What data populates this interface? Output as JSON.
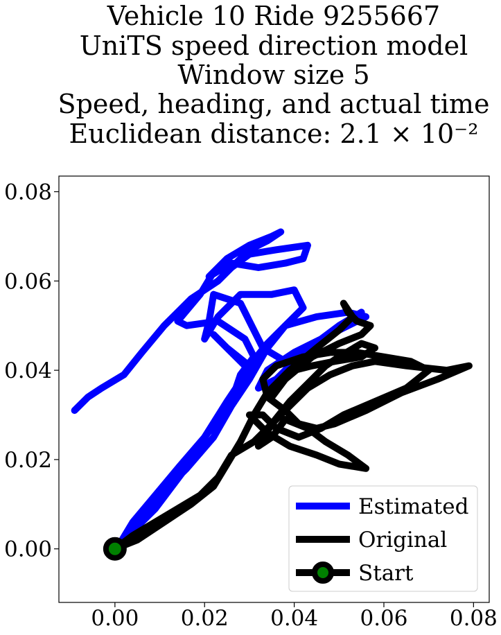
{
  "chart_data": {
    "type": "line",
    "title_lines": [
      "Vehicle 10 Ride 9255667",
      "UniTS speed direction model",
      "Window size 5",
      "Speed, heading, and actual time",
      "Euclidean distance: 2.1 × 10⁻²"
    ],
    "xlabel": "",
    "ylabel": "",
    "xlim": [
      -0.0125,
      0.0835
    ],
    "ylim": [
      -0.012,
      0.0835
    ],
    "xticks": [
      "0.00",
      "0.02",
      "0.04",
      "0.06",
      "0.08"
    ],
    "xtick_values": [
      0.0,
      0.02,
      0.04,
      0.06,
      0.08
    ],
    "yticks": [
      "0.00",
      "0.02",
      "0.04",
      "0.06",
      "0.08"
    ],
    "ytick_values": [
      0.0,
      0.02,
      0.04,
      0.06,
      0.08
    ],
    "grid": false,
    "legend_position": "lower-right",
    "series": [
      {
        "name": "Estimated",
        "color": "#0000ff",
        "points": [
          [
            0.0,
            0.0
          ],
          [
            0.005,
            0.006
          ],
          [
            0.01,
            0.012
          ],
          [
            0.016,
            0.018
          ],
          [
            0.022,
            0.025
          ],
          [
            0.026,
            0.032
          ],
          [
            0.03,
            0.038
          ],
          [
            0.034,
            0.045
          ],
          [
            0.038,
            0.05
          ],
          [
            0.045,
            0.052
          ],
          [
            0.052,
            0.053
          ],
          [
            0.056,
            0.052
          ],
          [
            0.048,
            0.048
          ],
          [
            0.04,
            0.044
          ],
          [
            0.034,
            0.04
          ],
          [
            0.032,
            0.036
          ],
          [
            0.036,
            0.038
          ],
          [
            0.042,
            0.044
          ],
          [
            0.05,
            0.05
          ],
          [
            0.055,
            0.053
          ],
          [
            0.046,
            0.047
          ],
          [
            0.038,
            0.042
          ],
          [
            0.033,
            0.045
          ],
          [
            0.031,
            0.049
          ],
          [
            0.028,
            0.055
          ],
          [
            0.022,
            0.057
          ],
          [
            0.021,
            0.051
          ],
          [
            0.02,
            0.047
          ],
          [
            0.023,
            0.052
          ],
          [
            0.028,
            0.057
          ],
          [
            0.035,
            0.057
          ],
          [
            0.04,
            0.058
          ],
          [
            0.042,
            0.054
          ],
          [
            0.038,
            0.05
          ],
          [
            0.034,
            0.046
          ],
          [
            0.03,
            0.041
          ],
          [
            0.025,
            0.045
          ],
          [
            0.022,
            0.048
          ],
          [
            0.026,
            0.044
          ],
          [
            0.03,
            0.04
          ],
          [
            0.027,
            0.036
          ],
          [
            0.025,
            0.033
          ],
          [
            0.02,
            0.025
          ],
          [
            0.015,
            0.017
          ],
          [
            0.009,
            0.009
          ],
          [
            0.004,
            0.004
          ],
          [
            0.001,
            0.001
          ],
          [
            0.004,
            0.006
          ],
          [
            0.009,
            0.012
          ],
          [
            0.014,
            0.018
          ],
          [
            0.02,
            0.025
          ],
          [
            0.026,
            0.033
          ],
          [
            0.028,
            0.039
          ],
          [
            0.031,
            0.043
          ],
          [
            0.029,
            0.047
          ],
          [
            0.023,
            0.051
          ],
          [
            0.016,
            0.05
          ],
          [
            0.014,
            0.051
          ],
          [
            0.019,
            0.057
          ],
          [
            0.022,
            0.062
          ],
          [
            0.026,
            0.063
          ],
          [
            0.03,
            0.066
          ],
          [
            0.036,
            0.067
          ],
          [
            0.043,
            0.068
          ],
          [
            0.042,
            0.065
          ],
          [
            0.038,
            0.064
          ],
          [
            0.032,
            0.063
          ],
          [
            0.026,
            0.064
          ],
          [
            0.021,
            0.061
          ],
          [
            0.025,
            0.065
          ],
          [
            0.03,
            0.068
          ],
          [
            0.035,
            0.07
          ],
          [
            0.037,
            0.071
          ],
          [
            0.034,
            0.069
          ],
          [
            0.03,
            0.067
          ],
          [
            0.026,
            0.063
          ],
          [
            0.023,
            0.06
          ],
          [
            0.017,
            0.056
          ],
          [
            0.011,
            0.05
          ],
          [
            0.006,
            0.044
          ],
          [
            0.002,
            0.039
          ],
          [
            -0.003,
            0.036
          ],
          [
            -0.006,
            0.034
          ],
          [
            -0.009,
            0.031
          ]
        ]
      },
      {
        "name": "Original",
        "color": "#000000",
        "points": [
          [
            0.0,
            0.0
          ],
          [
            0.004,
            0.003
          ],
          [
            0.009,
            0.006
          ],
          [
            0.014,
            0.009
          ],
          [
            0.019,
            0.012
          ],
          [
            0.023,
            0.016
          ],
          [
            0.026,
            0.021
          ],
          [
            0.031,
            0.024
          ],
          [
            0.035,
            0.028
          ],
          [
            0.039,
            0.032
          ],
          [
            0.043,
            0.036
          ],
          [
            0.048,
            0.039
          ],
          [
            0.053,
            0.041
          ],
          [
            0.058,
            0.042
          ],
          [
            0.065,
            0.041
          ],
          [
            0.074,
            0.04
          ],
          [
            0.079,
            0.041
          ],
          [
            0.072,
            0.038
          ],
          [
            0.064,
            0.035
          ],
          [
            0.056,
            0.031
          ],
          [
            0.049,
            0.028
          ],
          [
            0.045,
            0.027
          ],
          [
            0.041,
            0.028
          ],
          [
            0.038,
            0.031
          ],
          [
            0.034,
            0.034
          ],
          [
            0.033,
            0.038
          ],
          [
            0.036,
            0.041
          ],
          [
            0.042,
            0.043
          ],
          [
            0.048,
            0.044
          ],
          [
            0.054,
            0.044
          ],
          [
            0.06,
            0.043
          ],
          [
            0.066,
            0.042
          ],
          [
            0.07,
            0.04
          ],
          [
            0.065,
            0.036
          ],
          [
            0.058,
            0.033
          ],
          [
            0.051,
            0.03
          ],
          [
            0.046,
            0.027
          ],
          [
            0.041,
            0.025
          ],
          [
            0.036,
            0.027
          ],
          [
            0.033,
            0.03
          ],
          [
            0.03,
            0.03
          ],
          [
            0.034,
            0.026
          ],
          [
            0.039,
            0.023
          ],
          [
            0.045,
            0.021
          ],
          [
            0.05,
            0.019
          ],
          [
            0.056,
            0.018
          ],
          [
            0.052,
            0.021
          ],
          [
            0.047,
            0.024
          ],
          [
            0.043,
            0.027
          ],
          [
            0.038,
            0.029
          ],
          [
            0.035,
            0.025
          ],
          [
            0.032,
            0.023
          ],
          [
            0.035,
            0.028
          ],
          [
            0.039,
            0.033
          ],
          [
            0.043,
            0.037
          ],
          [
            0.047,
            0.041
          ],
          [
            0.05,
            0.043
          ],
          [
            0.055,
            0.046
          ],
          [
            0.058,
            0.045
          ],
          [
            0.055,
            0.043
          ],
          [
            0.049,
            0.042
          ],
          [
            0.044,
            0.041
          ],
          [
            0.04,
            0.04
          ],
          [
            0.037,
            0.037
          ],
          [
            0.035,
            0.034
          ],
          [
            0.038,
            0.038
          ],
          [
            0.044,
            0.043
          ],
          [
            0.05,
            0.046
          ],
          [
            0.055,
            0.048
          ],
          [
            0.057,
            0.05
          ],
          [
            0.054,
            0.051
          ],
          [
            0.052,
            0.053
          ],
          [
            0.051,
            0.055
          ],
          [
            0.053,
            0.052
          ],
          [
            0.05,
            0.049
          ],
          [
            0.045,
            0.045
          ],
          [
            0.039,
            0.04
          ],
          [
            0.034,
            0.035
          ],
          [
            0.031,
            0.03
          ],
          [
            0.028,
            0.024
          ],
          [
            0.025,
            0.019
          ],
          [
            0.022,
            0.014
          ],
          [
            0.017,
            0.01
          ],
          [
            0.011,
            0.006
          ],
          [
            0.005,
            0.002
          ],
          [
            0.0,
            0.0
          ]
        ]
      }
    ],
    "start_point": {
      "label": "Start",
      "x": 0.0,
      "y": 0.0,
      "marker_fill": "#008000",
      "marker_edge": "#000000"
    },
    "legend_entries": [
      {
        "label": "Estimated",
        "color": "#0000ff"
      },
      {
        "label": "Original",
        "color": "#000000"
      },
      {
        "label": "Start",
        "color": "#000000",
        "marker_fill": "#008000"
      }
    ]
  }
}
